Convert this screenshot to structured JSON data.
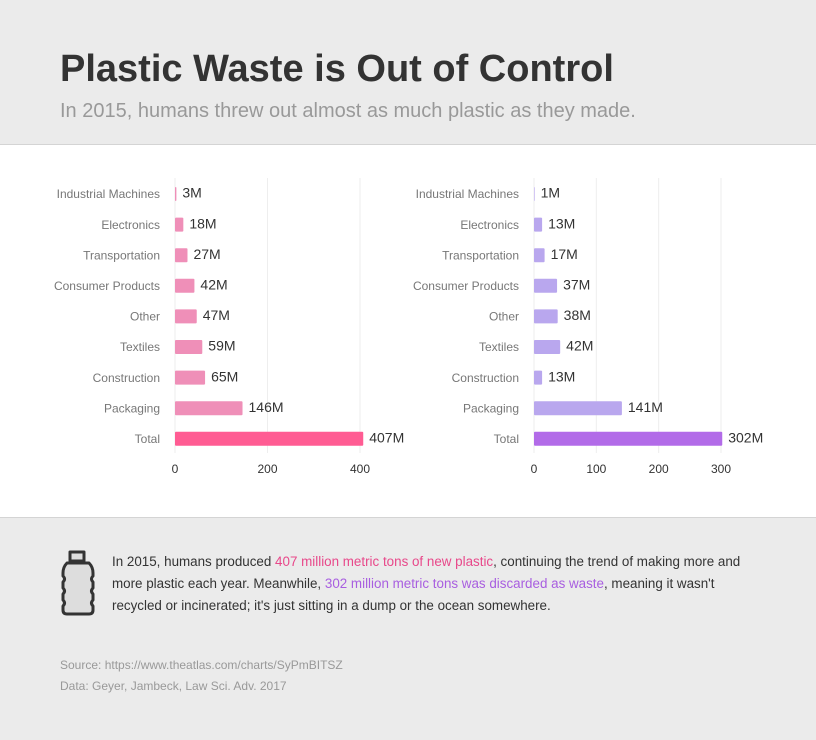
{
  "header": {
    "title": "Plastic Waste is Out of Control",
    "subtitle": "In 2015, humans threw out almost as much plastic as they made."
  },
  "chart_data": [
    {
      "type": "bar",
      "orientation": "horizontal",
      "categories": [
        "Industrial Machines",
        "Electronics",
        "Transportation",
        "Consumer Products",
        "Other",
        "Textiles",
        "Construction",
        "Packaging",
        "Total"
      ],
      "values": [
        3,
        18,
        27,
        42,
        47,
        59,
        65,
        146,
        407
      ],
      "value_labels": [
        "3M",
        "18M",
        "27M",
        "42M",
        "47M",
        "59M",
        "65M",
        "146M",
        "407M"
      ],
      "colors": [
        "#ef8fb8",
        "#ef8fb8",
        "#ef8fb8",
        "#ef8fb8",
        "#ef8fb8",
        "#ef8fb8",
        "#ef8fb8",
        "#ef8fb8",
        "#ff5c93"
      ],
      "xlim": [
        0,
        400
      ],
      "xticks": [
        0,
        200,
        400
      ],
      "grid": true
    },
    {
      "type": "bar",
      "orientation": "horizontal",
      "categories": [
        "Industrial Machines",
        "Electronics",
        "Transportation",
        "Consumer Products",
        "Other",
        "Textiles",
        "Construction",
        "Packaging",
        "Total"
      ],
      "values": [
        1,
        13,
        17,
        37,
        38,
        42,
        13,
        141,
        302
      ],
      "value_labels": [
        "1M",
        "13M",
        "17M",
        "37M",
        "38M",
        "42M",
        "13M",
        "141M",
        "302M"
      ],
      "colors": [
        "#b9a7ee",
        "#b9a7ee",
        "#b9a7ee",
        "#b9a7ee",
        "#b9a7ee",
        "#b9a7ee",
        "#b9a7ee",
        "#b9a7ee",
        "#b26be8"
      ],
      "xlim": [
        0,
        300
      ],
      "xticks": [
        0,
        100,
        200,
        300
      ],
      "grid": true
    }
  ],
  "note": {
    "parts": [
      "In 2015, humans produced ",
      "407 million metric tons of new plastic",
      ", continuing the trend of making more and more plastic each year. Meanwhile, ",
      "302 million metric tons was discarded as waste",
      ", meaning it wasn't recycled or incinerated; it's just sitting in a dump or the ocean somewhere."
    ]
  },
  "sources": [
    "Source: https://www.theatlas.com/charts/SyPmBITSZ",
    "Data: Geyer, Jambeck, Law Sci. Adv. 2017"
  ]
}
